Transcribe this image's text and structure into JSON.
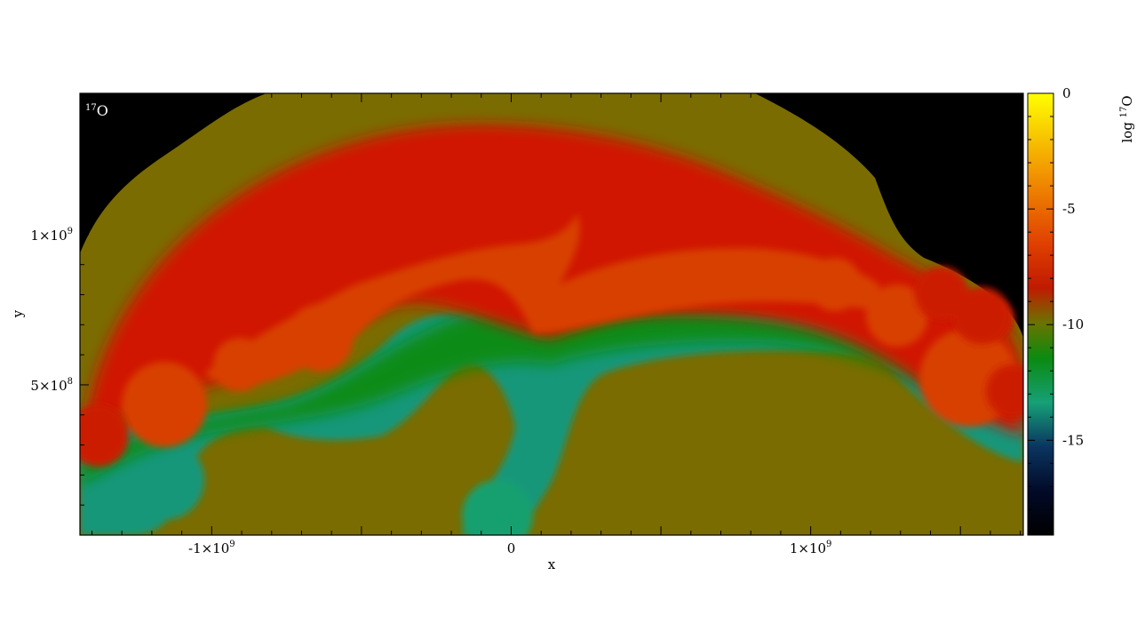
{
  "chart_data": {
    "type": "heatmap",
    "panel_label": {
      "sup": "17",
      "text": "O"
    },
    "xlabel": "x",
    "ylabel": "y",
    "xlim": [
      -1440000000,
      1710000000
    ],
    "ylim": [
      0,
      1470000000
    ],
    "x_ticks": [
      {
        "value": -1000000000,
        "mantissa": "-1×10",
        "exponent": "9"
      },
      {
        "value": 0,
        "mantissa": "0",
        "exponent": ""
      },
      {
        "value": 1000000000,
        "mantissa": "1×10",
        "exponent": "9"
      }
    ],
    "y_ticks": [
      {
        "value": 500000000,
        "mantissa": "5×10",
        "exponent": "8"
      },
      {
        "value": 1000000000,
        "mantissa": "1×10",
        "exponent": "9"
      }
    ],
    "colorbar": {
      "label_prefix": "log ",
      "label_sup": "17",
      "label_suffix": "O",
      "range": [
        -19.1,
        0
      ],
      "ticks": [
        {
          "value": 0,
          "label": "0"
        },
        {
          "value": -5,
          "label": "-5"
        },
        {
          "value": -10,
          "label": "-10"
        },
        {
          "value": -15,
          "label": "-15"
        }
      ]
    },
    "colors": {
      "background": "#000000",
      "outer_shell": "#7a6c00",
      "red_band": "#d01400",
      "orange_band": "#d84000",
      "green_band": "#0a8a10",
      "teal": "#16a077",
      "navy": "#000a3c"
    }
  }
}
